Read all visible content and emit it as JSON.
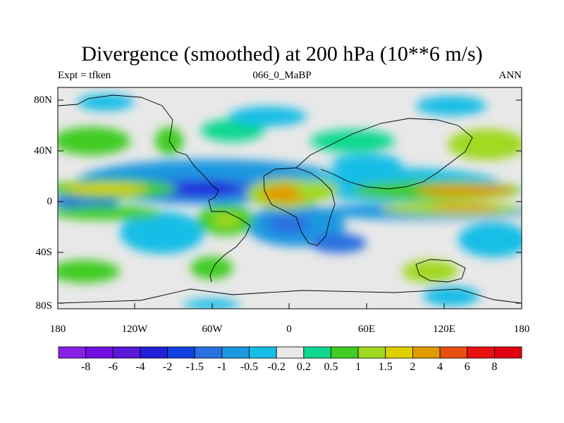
{
  "header": {
    "title": "Divergence (smoothed) at 200 hPa (10**6 m/s)",
    "left": "Expt = tfken",
    "center": "066_0_MaBP",
    "right": "ANN"
  },
  "axes": {
    "lat_labels": [
      "80N",
      "40N",
      "0",
      "40S",
      "80S"
    ],
    "lat_values": [
      80,
      40,
      0,
      -40,
      -80
    ],
    "lon_labels": [
      "180",
      "120W",
      "60W",
      "0",
      "60E",
      "120E",
      "180"
    ],
    "lon_values": [
      -180,
      -120,
      -60,
      0,
      60,
      120,
      180
    ]
  },
  "colorbar": {
    "labels": [
      "-8",
      "-6",
      "-4",
      "-2",
      "-1.5",
      "-1",
      "-0.5",
      "-0.2",
      "0.2",
      "0.5",
      "1",
      "1.5",
      "2",
      "4",
      "6",
      "8"
    ],
    "colors": [
      "#8a1fe6",
      "#7010e0",
      "#5a18d8",
      "#2020d8",
      "#1040e0",
      "#2a70e0",
      "#1a98e0",
      "#16bde6",
      "#e8e8e8",
      "#10d890",
      "#40cc20",
      "#a0d820",
      "#e0d000",
      "#e09a00",
      "#e85010",
      "#e81010",
      "#e00010"
    ]
  }
}
